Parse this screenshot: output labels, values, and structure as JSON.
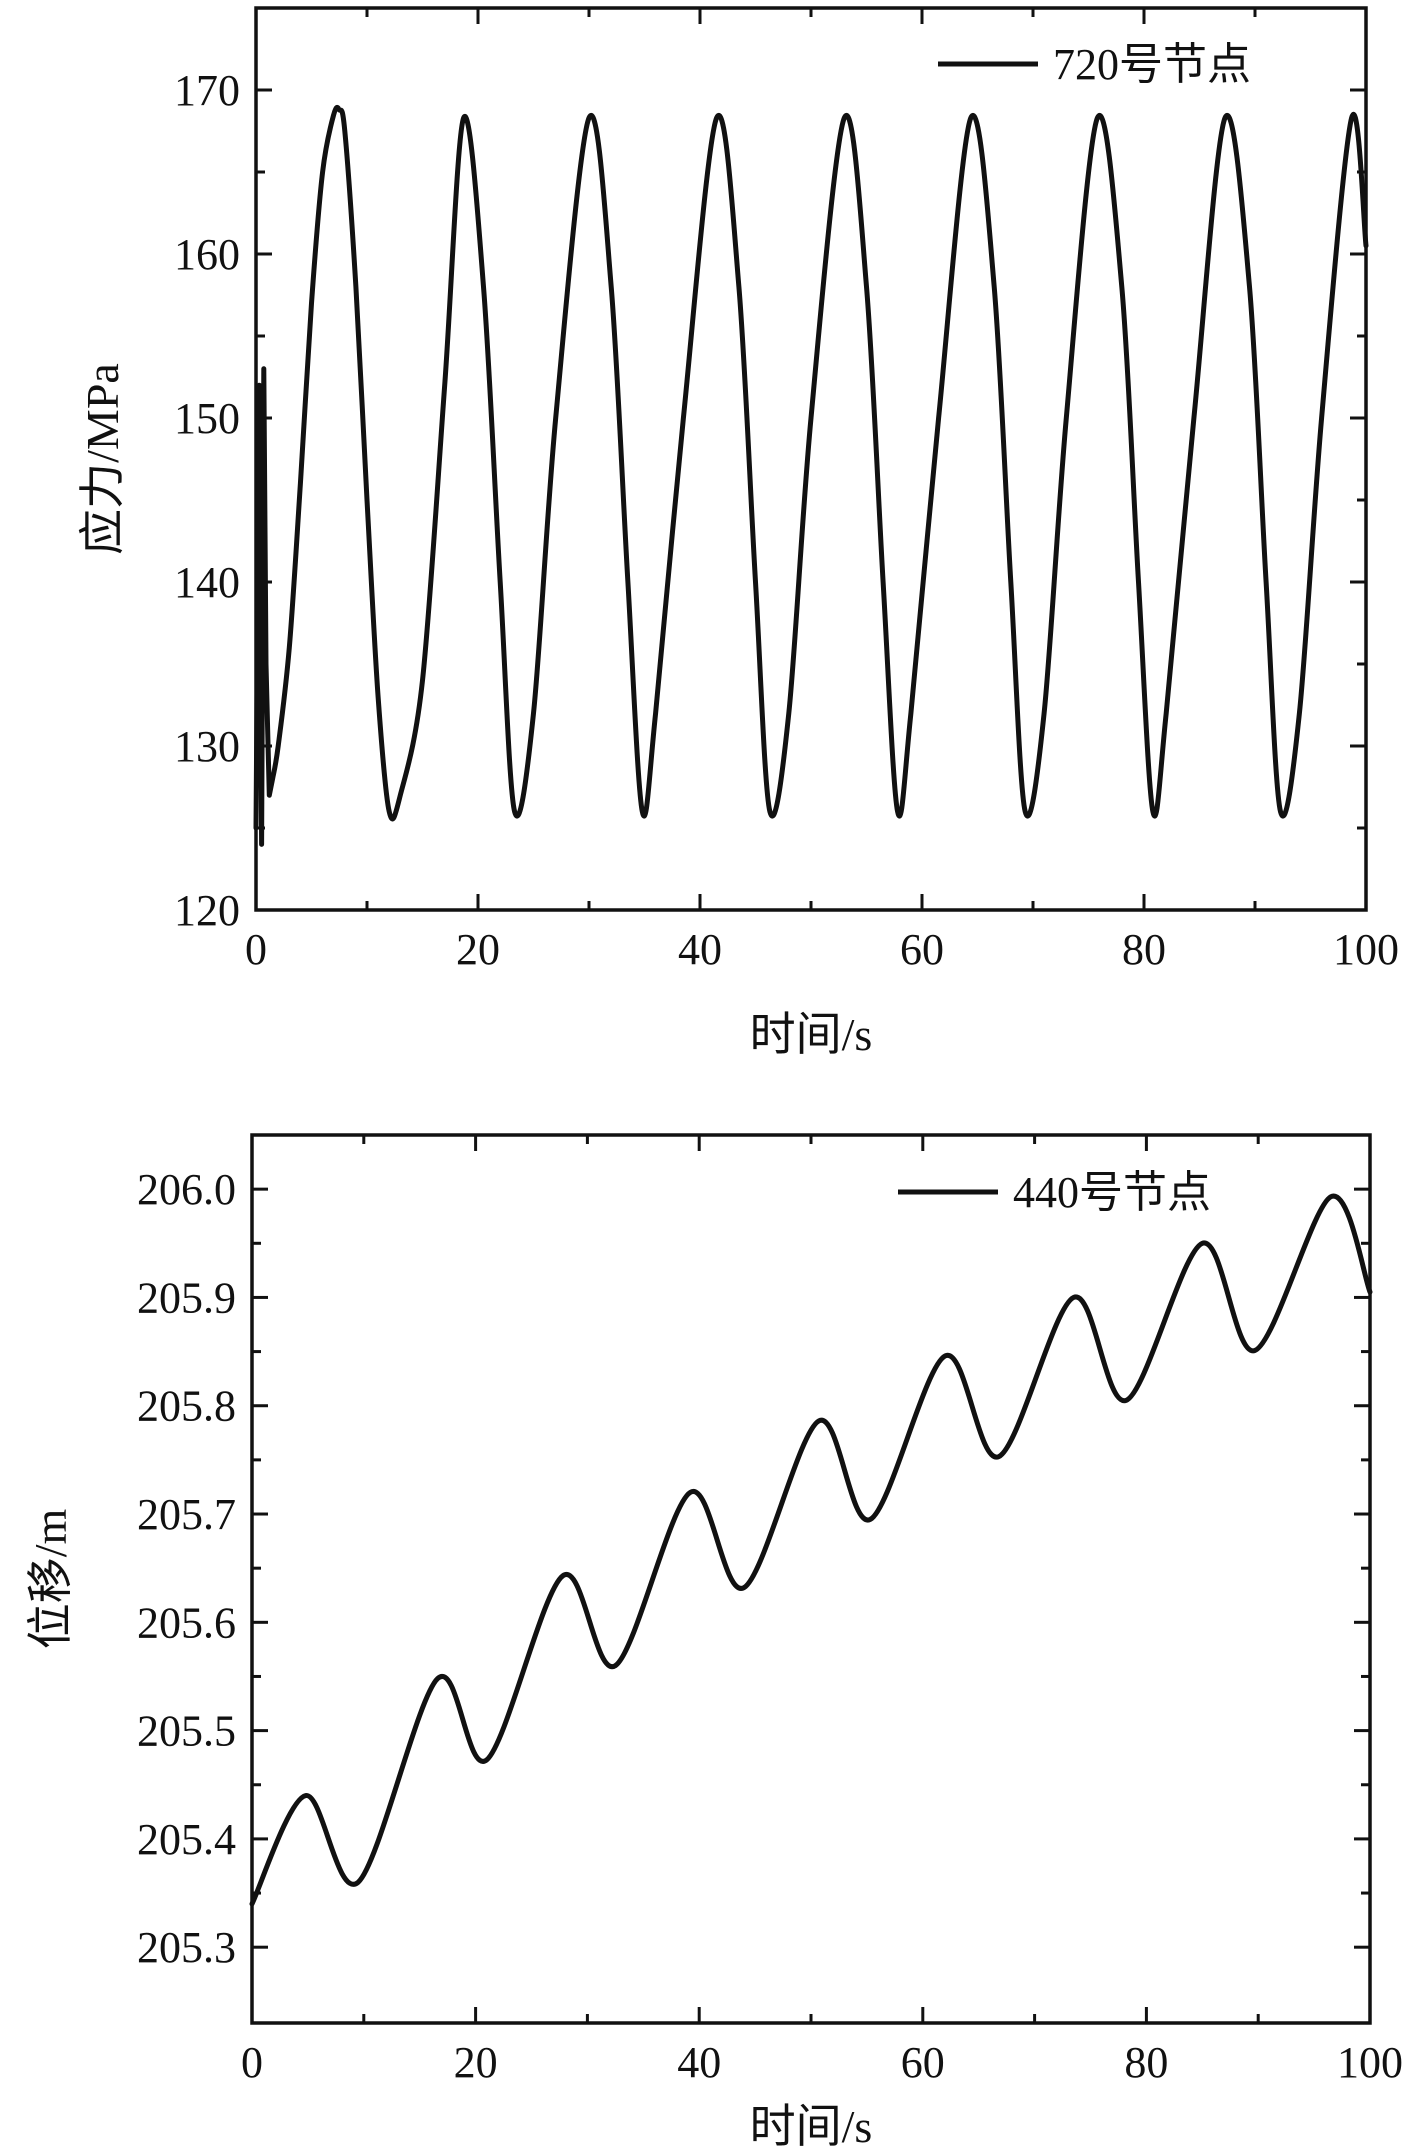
{
  "chart_data": [
    {
      "type": "line",
      "xlabel": "时间/s",
      "ylabel": "应力/MPa",
      "xlim": [
        0,
        100
      ],
      "ylim": [
        120,
        175
      ],
      "xticks": [
        0,
        20,
        40,
        60,
        80,
        100
      ],
      "yticks": [
        120,
        130,
        140,
        150,
        160,
        170
      ],
      "ytick_labels": [
        "120",
        "130",
        "140",
        "150",
        "160",
        "170"
      ],
      "grid": false,
      "legend_position": "top-right",
      "series": [
        {
          "name": "720号节点",
          "color": "#111111",
          "x": [
            0,
            0.3,
            0.5,
            0.7,
            0.9,
            1.2,
            1.5,
            2,
            3,
            4,
            5,
            6,
            7,
            7.5,
            8,
            9,
            10,
            11,
            12,
            13,
            15,
            17,
            18.7,
            20.5,
            22,
            23.3,
            25,
            27,
            30,
            32,
            33.5,
            34.8,
            36,
            38.5,
            41.5,
            43.5,
            45,
            46.3,
            48,
            50,
            53,
            55,
            56.5,
            57.8,
            59,
            61.5,
            64.4,
            66.5,
            68,
            69.3,
            71,
            73,
            75.8,
            78,
            79.5,
            80.8,
            82,
            84.5,
            87.3,
            89.5,
            91,
            92.3,
            94,
            96,
            98.7,
            100
          ],
          "y": [
            125,
            152,
            124,
            153,
            135,
            127,
            128,
            130,
            136,
            146,
            157,
            165,
            168.5,
            168.8,
            167.5,
            158,
            145,
            133,
            126,
            127,
            134,
            152,
            168.3,
            158,
            140,
            126,
            132,
            150,
            168.3,
            158,
            140,
            126,
            132,
            150,
            168.3,
            158,
            140,
            126,
            132,
            150,
            168.3,
            158,
            140,
            126,
            132,
            150,
            168.3,
            158,
            140,
            126,
            132,
            150,
            168.3,
            158,
            140,
            126,
            132,
            150,
            168.3,
            158,
            140,
            126,
            132,
            150,
            168.3,
            160.5
          ]
        }
      ]
    },
    {
      "type": "line",
      "xlabel": "时间/s",
      "ylabel": "位移/m",
      "xlim": [
        0,
        100
      ],
      "ylim": [
        205.23,
        206.05
      ],
      "xticks": [
        0,
        20,
        40,
        60,
        80,
        100
      ],
      "yticks": [
        205.3,
        205.4,
        205.5,
        205.6,
        205.7,
        205.8,
        205.9,
        206.0
      ],
      "ytick_labels": [
        "205.3",
        "205.4",
        "205.5",
        "205.6",
        "205.7",
        "205.8",
        "205.9",
        "206.0"
      ],
      "grid": false,
      "legend_position": "top-right",
      "series": [
        {
          "name": "440号节点",
          "color": "#111111",
          "x": [
            0,
            4.8,
            9.5,
            16.6,
            21,
            27.8,
            32.5,
            39.2,
            44,
            50.7,
            55.3,
            62,
            66.8,
            73.5,
            78.2,
            85,
            89.7,
            96.5,
            100
          ],
          "y": [
            205.34,
            205.44,
            205.36,
            205.548,
            205.473,
            205.643,
            205.56,
            205.72,
            205.632,
            205.786,
            205.695,
            205.846,
            205.753,
            205.9,
            205.805,
            205.95,
            205.851,
            205.993,
            205.905
          ]
        }
      ]
    }
  ]
}
